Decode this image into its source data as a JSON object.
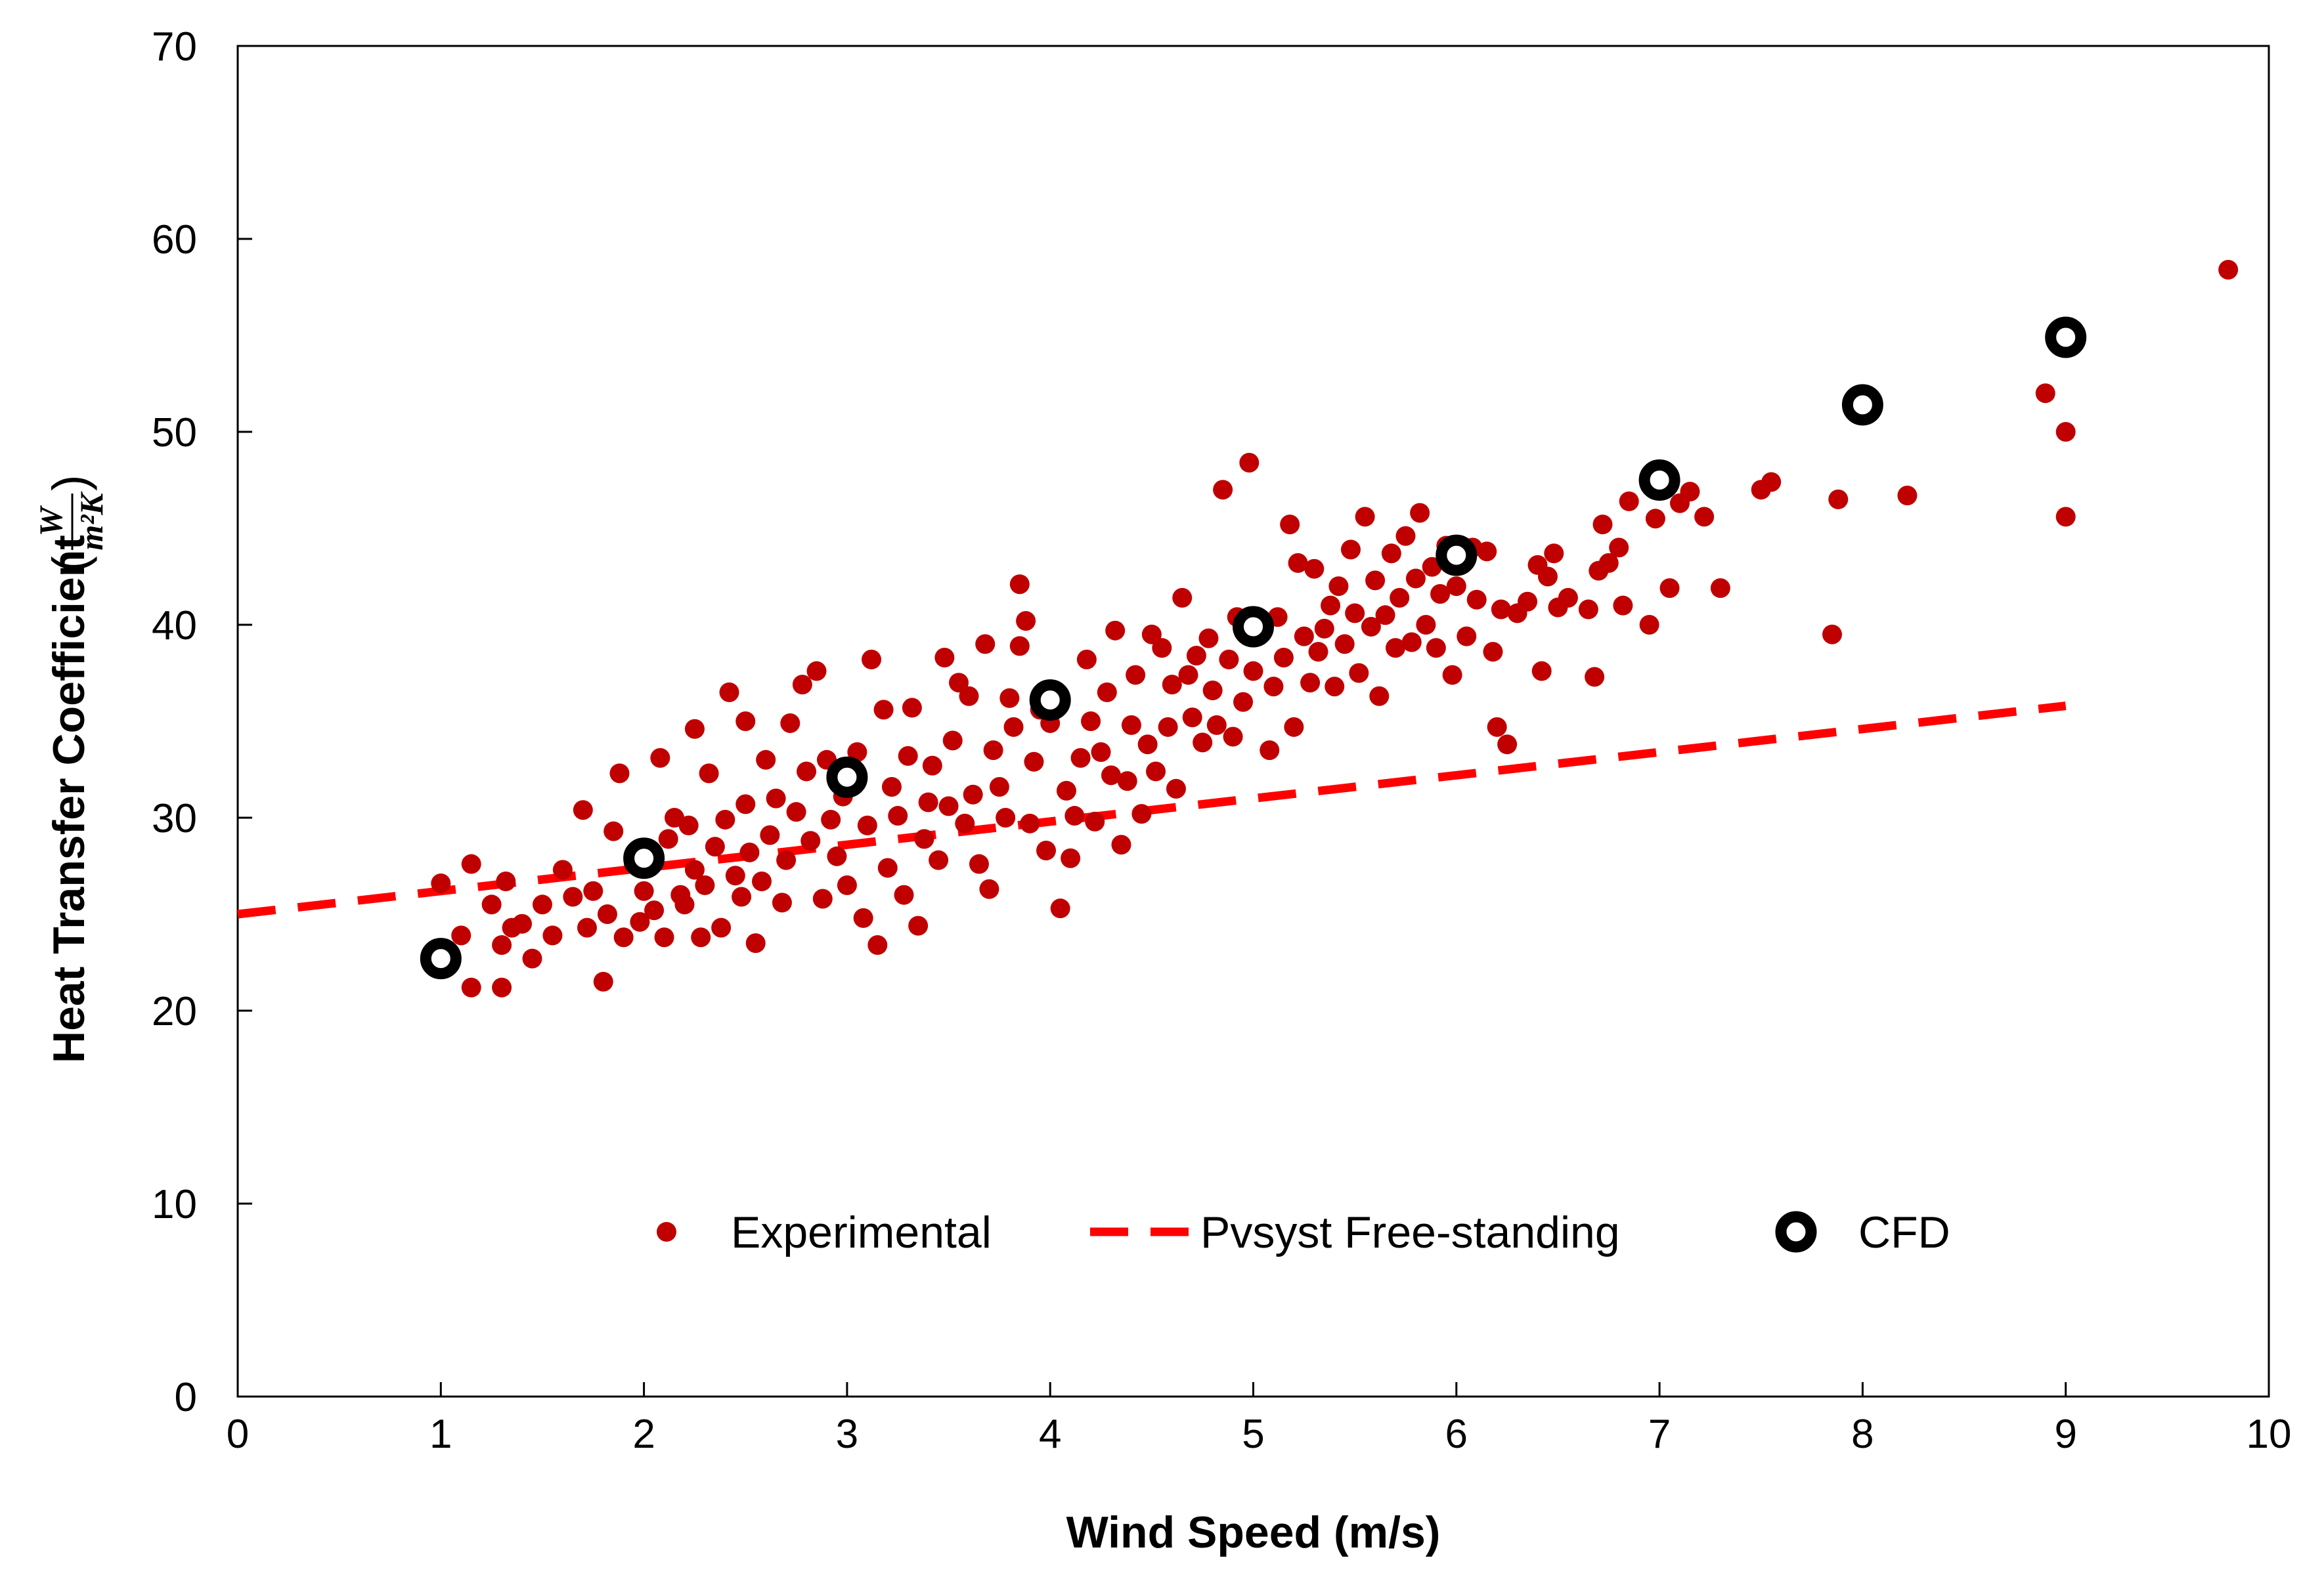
{
  "chart_data": {
    "type": "scatter",
    "title": "",
    "xlabel": "Wind Speed (m/s)",
    "ylabel": "Heat Transfer Coefficient",
    "ylabel_unit": {
      "paren_open": "(",
      "numerator": "W",
      "denominator": "m²K",
      "paren_close": ")"
    },
    "xlim": [
      0,
      10
    ],
    "ylim": [
      0,
      70
    ],
    "x_ticks": [
      0,
      1,
      2,
      3,
      4,
      5,
      6,
      7,
      8,
      9,
      10
    ],
    "y_ticks": [
      0,
      10,
      20,
      30,
      40,
      50,
      60,
      70
    ],
    "x_tick_labels": [
      "0",
      "1",
      "2",
      "3",
      "4",
      "5",
      "6",
      "7",
      "8",
      "9",
      "10"
    ],
    "y_tick_labels": [
      "0",
      "10",
      "20",
      "30",
      "40",
      "50",
      "60",
      "70"
    ],
    "grid": false,
    "legend_position": "bottom-center",
    "series": [
      {
        "name": "Experimental",
        "kind": "scatter",
        "color": "#c00000",
        "points": [
          [
            1.0,
            26.6
          ],
          [
            1.1,
            23.9
          ],
          [
            1.15,
            21.2
          ],
          [
            1.15,
            27.6
          ],
          [
            1.25,
            25.5
          ],
          [
            1.3,
            21.2
          ],
          [
            1.3,
            23.4
          ],
          [
            1.32,
            26.7
          ],
          [
            1.35,
            24.3
          ],
          [
            1.4,
            24.5
          ],
          [
            1.45,
            22.7
          ],
          [
            1.5,
            25.5
          ],
          [
            1.55,
            23.9
          ],
          [
            1.6,
            27.3
          ],
          [
            1.65,
            25.9
          ],
          [
            1.7,
            30.4
          ],
          [
            1.72,
            24.3
          ],
          [
            1.75,
            26.2
          ],
          [
            1.8,
            21.5
          ],
          [
            1.82,
            25.0
          ],
          [
            1.85,
            29.3
          ],
          [
            1.88,
            32.3
          ],
          [
            1.9,
            23.8
          ],
          [
            1.95,
            27.6
          ],
          [
            1.98,
            24.6
          ],
          [
            2.0,
            26.2
          ],
          [
            2.05,
            25.2
          ],
          [
            2.08,
            33.1
          ],
          [
            2.1,
            23.8
          ],
          [
            2.12,
            28.9
          ],
          [
            2.15,
            30.0
          ],
          [
            2.18,
            26.0
          ],
          [
            2.2,
            25.5
          ],
          [
            2.22,
            29.6
          ],
          [
            2.25,
            27.3
          ],
          [
            2.25,
            34.6
          ],
          [
            2.28,
            23.8
          ],
          [
            2.3,
            26.5
          ],
          [
            2.32,
            32.3
          ],
          [
            2.35,
            28.5
          ],
          [
            2.38,
            24.3
          ],
          [
            2.4,
            29.9
          ],
          [
            2.42,
            36.5
          ],
          [
            2.45,
            27.0
          ],
          [
            2.48,
            25.9
          ],
          [
            2.5,
            30.7
          ],
          [
            2.5,
            35.0
          ],
          [
            2.52,
            28.2
          ],
          [
            2.55,
            23.5
          ],
          [
            2.58,
            26.7
          ],
          [
            2.6,
            33.0
          ],
          [
            2.62,
            29.1
          ],
          [
            2.65,
            31.0
          ],
          [
            2.68,
            25.6
          ],
          [
            2.7,
            27.8
          ],
          [
            2.72,
            34.9
          ],
          [
            2.75,
            30.3
          ],
          [
            2.78,
            36.9
          ],
          [
            2.8,
            32.4
          ],
          [
            2.82,
            28.8
          ],
          [
            2.85,
            37.6
          ],
          [
            2.88,
            25.8
          ],
          [
            2.9,
            33.0
          ],
          [
            2.92,
            29.9
          ],
          [
            2.95,
            28.0
          ],
          [
            2.98,
            31.1
          ],
          [
            3.0,
            26.5
          ],
          [
            3.05,
            33.4
          ],
          [
            3.08,
            24.8
          ],
          [
            3.1,
            29.6
          ],
          [
            3.12,
            38.2
          ],
          [
            3.15,
            23.4
          ],
          [
            3.18,
            35.6
          ],
          [
            3.2,
            27.4
          ],
          [
            3.22,
            31.6
          ],
          [
            3.25,
            30.1
          ],
          [
            3.28,
            26.0
          ],
          [
            3.3,
            33.2
          ],
          [
            3.32,
            35.7
          ],
          [
            3.35,
            24.4
          ],
          [
            3.38,
            28.9
          ],
          [
            3.4,
            30.8
          ],
          [
            3.42,
            32.7
          ],
          [
            3.45,
            27.8
          ],
          [
            3.48,
            38.3
          ],
          [
            3.5,
            30.6
          ],
          [
            3.52,
            34.0
          ],
          [
            3.55,
            37.0
          ],
          [
            3.58,
            29.7
          ],
          [
            3.6,
            36.3
          ],
          [
            3.62,
            31.2
          ],
          [
            3.65,
            27.6
          ],
          [
            3.68,
            39.0
          ],
          [
            3.7,
            26.3
          ],
          [
            3.72,
            33.5
          ],
          [
            3.75,
            31.6
          ],
          [
            3.78,
            30.0
          ],
          [
            3.8,
            36.2
          ],
          [
            3.82,
            34.7
          ],
          [
            3.85,
            38.9
          ],
          [
            3.85,
            42.1
          ],
          [
            3.88,
            40.2
          ],
          [
            3.9,
            29.7
          ],
          [
            3.92,
            32.9
          ],
          [
            3.95,
            35.6
          ],
          [
            3.98,
            28.3
          ],
          [
            4.0,
            34.9
          ],
          [
            4.05,
            25.3
          ],
          [
            4.08,
            31.4
          ],
          [
            4.1,
            27.9
          ],
          [
            4.12,
            30.1
          ],
          [
            4.15,
            33.1
          ],
          [
            4.18,
            38.2
          ],
          [
            4.2,
            35.0
          ],
          [
            4.22,
            29.8
          ],
          [
            4.25,
            33.4
          ],
          [
            4.28,
            36.5
          ],
          [
            4.3,
            32.2
          ],
          [
            4.32,
            39.7
          ],
          [
            4.35,
            28.6
          ],
          [
            4.38,
            31.9
          ],
          [
            4.4,
            34.8
          ],
          [
            4.42,
            37.4
          ],
          [
            4.45,
            30.2
          ],
          [
            4.48,
            33.8
          ],
          [
            4.5,
            39.5
          ],
          [
            4.52,
            32.4
          ],
          [
            4.55,
            38.8
          ],
          [
            4.58,
            34.7
          ],
          [
            4.6,
            36.9
          ],
          [
            4.62,
            31.5
          ],
          [
            4.65,
            41.4
          ],
          [
            4.68,
            37.4
          ],
          [
            4.7,
            35.2
          ],
          [
            4.72,
            38.4
          ],
          [
            4.75,
            33.9
          ],
          [
            4.78,
            39.3
          ],
          [
            4.8,
            36.6
          ],
          [
            4.82,
            34.8
          ],
          [
            4.85,
            47.0
          ],
          [
            4.88,
            38.2
          ],
          [
            4.9,
            34.2
          ],
          [
            4.92,
            40.4
          ],
          [
            4.95,
            36.0
          ],
          [
            4.98,
            48.4
          ],
          [
            5.0,
            37.6
          ],
          [
            5.05,
            39.7
          ],
          [
            5.08,
            33.5
          ],
          [
            5.1,
            36.8
          ],
          [
            5.12,
            40.4
          ],
          [
            5.15,
            38.3
          ],
          [
            5.18,
            45.2
          ],
          [
            5.2,
            34.7
          ],
          [
            5.22,
            43.2
          ],
          [
            5.25,
            39.4
          ],
          [
            5.28,
            37.0
          ],
          [
            5.3,
            42.9
          ],
          [
            5.32,
            38.6
          ],
          [
            5.35,
            39.8
          ],
          [
            5.38,
            41.0
          ],
          [
            5.4,
            36.8
          ],
          [
            5.42,
            42.0
          ],
          [
            5.45,
            39.0
          ],
          [
            5.48,
            43.9
          ],
          [
            5.5,
            40.6
          ],
          [
            5.52,
            37.5
          ],
          [
            5.55,
            45.6
          ],
          [
            5.58,
            39.9
          ],
          [
            5.6,
            42.3
          ],
          [
            5.62,
            36.3
          ],
          [
            5.65,
            40.5
          ],
          [
            5.68,
            43.7
          ],
          [
            5.7,
            38.8
          ],
          [
            5.72,
            41.4
          ],
          [
            5.75,
            44.6
          ],
          [
            5.78,
            39.1
          ],
          [
            5.8,
            42.4
          ],
          [
            5.82,
            45.8
          ],
          [
            5.85,
            40.0
          ],
          [
            5.88,
            43.0
          ],
          [
            5.9,
            38.8
          ],
          [
            5.92,
            41.6
          ],
          [
            5.95,
            44.1
          ],
          [
            5.98,
            37.4
          ],
          [
            6.0,
            42.0
          ],
          [
            6.05,
            39.4
          ],
          [
            6.08,
            44.0
          ],
          [
            6.1,
            41.3
          ],
          [
            6.15,
            43.8
          ],
          [
            6.18,
            38.6
          ],
          [
            6.2,
            34.7
          ],
          [
            6.22,
            40.8
          ],
          [
            6.25,
            33.8
          ],
          [
            6.3,
            40.6
          ],
          [
            6.35,
            41.2
          ],
          [
            6.4,
            43.1
          ],
          [
            6.42,
            37.6
          ],
          [
            6.45,
            42.5
          ],
          [
            6.48,
            43.7
          ],
          [
            6.5,
            40.9
          ],
          [
            6.55,
            41.4
          ],
          [
            6.65,
            40.8
          ],
          [
            6.68,
            37.3
          ],
          [
            6.7,
            42.8
          ],
          [
            6.72,
            45.2
          ],
          [
            6.75,
            43.2
          ],
          [
            6.8,
            44.0
          ],
          [
            6.82,
            41.0
          ],
          [
            6.85,
            46.4
          ],
          [
            6.95,
            40.0
          ],
          [
            6.98,
            45.5
          ],
          [
            7.05,
            41.9
          ],
          [
            7.1,
            46.3
          ],
          [
            7.15,
            46.9
          ],
          [
            7.22,
            45.6
          ],
          [
            7.3,
            41.9
          ],
          [
            7.5,
            47.0
          ],
          [
            7.55,
            47.4
          ],
          [
            7.85,
            39.5
          ],
          [
            7.88,
            46.5
          ],
          [
            8.22,
            46.7
          ],
          [
            8.9,
            52.0
          ],
          [
            9.0,
            50.0
          ],
          [
            9.0,
            45.6
          ],
          [
            9.8,
            58.4
          ]
        ]
      },
      {
        "name": "Pvsyst Free-standing",
        "kind": "line",
        "style": "dashed",
        "color": "#ff0000",
        "points": [
          [
            0,
            25.0
          ],
          [
            9.0,
            35.8
          ]
        ]
      },
      {
        "name": "CFD",
        "kind": "scatter",
        "marker": "ring",
        "color": "#000000",
        "points": [
          [
            1,
            22.7
          ],
          [
            2,
            27.9
          ],
          [
            3,
            32.1
          ],
          [
            4,
            36.1
          ],
          [
            5,
            39.9
          ],
          [
            6,
            43.6
          ],
          [
            7,
            47.5
          ],
          [
            8,
            51.4
          ],
          [
            9,
            54.9
          ]
        ]
      }
    ]
  }
}
